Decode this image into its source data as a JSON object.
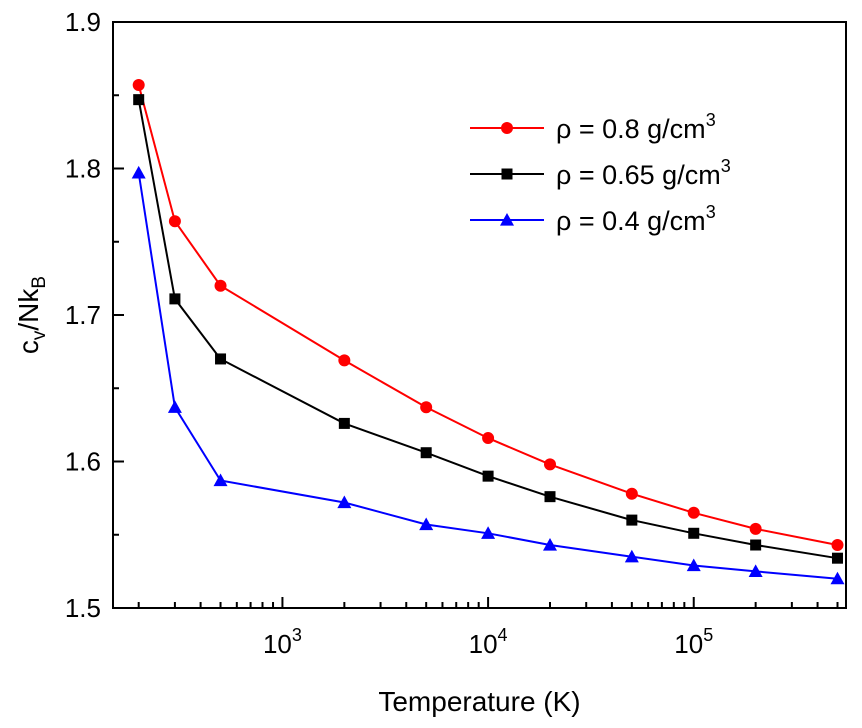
{
  "chart_data": {
    "type": "line",
    "x_scale": "log",
    "xlabel": "Temperature (K)",
    "ylabel": {
      "main": "c",
      "sub1": "v",
      "mid": "/Nk",
      "sub2": "B"
    },
    "xlim": [
      150,
      550000
    ],
    "ylim": [
      1.5,
      1.9
    ],
    "y_ticks": [
      {
        "value": 1.5,
        "label": "1.5"
      },
      {
        "value": 1.6,
        "label": "1.6"
      },
      {
        "value": 1.7,
        "label": "1.7"
      },
      {
        "value": 1.8,
        "label": "1.8"
      },
      {
        "value": 1.9,
        "label": "1.9"
      }
    ],
    "x_ticks": [
      {
        "value": 1000,
        "base": "10",
        "exp": "3"
      },
      {
        "value": 10000,
        "base": "10",
        "exp": "4"
      },
      {
        "value": 100000,
        "base": "10",
        "exp": "5"
      }
    ],
    "x": [
      200,
      300,
      500,
      2000,
      5000,
      10000,
      20000,
      50000,
      100000,
      200000,
      500000
    ],
    "series": [
      {
        "name": "ρ = 0.8 g/cm",
        "name_sup": "3",
        "color": "#ff0000",
        "marker": "circle",
        "values": [
          1.857,
          1.764,
          1.72,
          1.669,
          1.637,
          1.616,
          1.598,
          1.578,
          1.565,
          1.554,
          1.543
        ]
      },
      {
        "name": "ρ = 0.65 g/cm",
        "name_sup": "3",
        "color": "#000000",
        "marker": "square",
        "values": [
          1.847,
          1.711,
          1.67,
          1.626,
          1.606,
          1.59,
          1.576,
          1.56,
          1.551,
          1.543,
          1.534
        ]
      },
      {
        "name": "ρ = 0.4 g/cm",
        "name_sup": "3",
        "color": "#0000ff",
        "marker": "triangle",
        "values": [
          1.797,
          1.637,
          1.587,
          1.572,
          1.557,
          1.551,
          1.543,
          1.535,
          1.529,
          1.525,
          1.52
        ]
      }
    ],
    "legend_position": "top-right",
    "grid": false
  }
}
